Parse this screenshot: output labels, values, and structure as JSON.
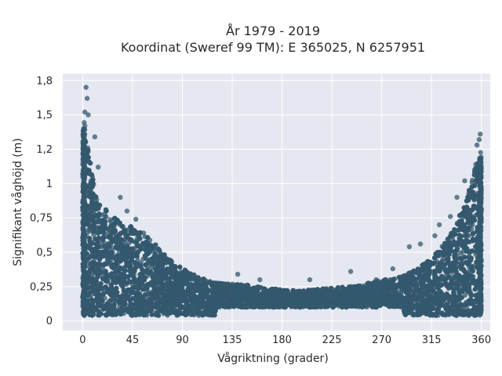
{
  "chart_data": {
    "type": "scatter",
    "title_lines": [
      "År 1979 - 2019",
      "Koordinat (Sweref 99 TM): E 365025, N 6257951"
    ],
    "xlabel": "Vågriktning (grader)",
    "ylabel": "Signifikant våghöjd (m)",
    "xlim": [
      -18,
      368
    ],
    "ylim": [
      -0.07,
      1.8
    ],
    "x_ticks": [
      0,
      45,
      90,
      135,
      180,
      225,
      270,
      315,
      360
    ],
    "x_tick_labels": [
      "0",
      "45",
      "90",
      "135",
      "180",
      "225",
      "270",
      "315",
      "360"
    ],
    "y_ticks": [
      0,
      0.25,
      0.5,
      0.75,
      1,
      1.25,
      1.5,
      1.75
    ],
    "y_tick_labels": [
      "0",
      "0,25",
      "0,5",
      "0,75",
      "1",
      "1,2",
      "1,5",
      "1,8"
    ],
    "grid": true,
    "colors": {
      "marker": "#34586e",
      "plot_bg": "#e5e8f0",
      "grid": "#ffffff"
    },
    "series": [
      {
        "envelope": [
          {
            "x": 0,
            "y": 1.55
          },
          {
            "x": 5,
            "y": 1.25
          },
          {
            "x": 10,
            "y": 1.0
          },
          {
            "x": 15,
            "y": 0.85
          },
          {
            "x": 30,
            "y": 0.75
          },
          {
            "x": 45,
            "y": 0.68
          },
          {
            "x": 60,
            "y": 0.6
          },
          {
            "x": 75,
            "y": 0.48
          },
          {
            "x": 90,
            "y": 0.38
          },
          {
            "x": 105,
            "y": 0.32
          },
          {
            "x": 120,
            "y": 0.28
          },
          {
            "x": 135,
            "y": 0.27
          },
          {
            "x": 150,
            "y": 0.26
          },
          {
            "x": 165,
            "y": 0.24
          },
          {
            "x": 180,
            "y": 0.23
          },
          {
            "x": 195,
            "y": 0.22
          },
          {
            "x": 210,
            "y": 0.23
          },
          {
            "x": 225,
            "y": 0.24
          },
          {
            "x": 240,
            "y": 0.25
          },
          {
            "x": 255,
            "y": 0.27
          },
          {
            "x": 270,
            "y": 0.3
          },
          {
            "x": 285,
            "y": 0.32
          },
          {
            "x": 300,
            "y": 0.38
          },
          {
            "x": 315,
            "y": 0.45
          },
          {
            "x": 330,
            "y": 0.6
          },
          {
            "x": 345,
            "y": 0.85
          },
          {
            "x": 352,
            "y": 1.05
          },
          {
            "x": 358,
            "y": 1.2
          },
          {
            "x": 360,
            "y": 1.25
          }
        ],
        "notable_points": [
          {
            "x": 3,
            "y": 1.7
          },
          {
            "x": 4,
            "y": 1.62
          },
          {
            "x": 2,
            "y": 1.52
          },
          {
            "x": 5,
            "y": 1.5
          },
          {
            "x": 2,
            "y": 1.42
          },
          {
            "x": 11,
            "y": 1.34
          },
          {
            "x": 14,
            "y": 1.12
          },
          {
            "x": 34,
            "y": 0.9
          },
          {
            "x": 40,
            "y": 0.8
          },
          {
            "x": 48,
            "y": 0.74
          },
          {
            "x": 55,
            "y": 0.64
          },
          {
            "x": 140,
            "y": 0.34
          },
          {
            "x": 160,
            "y": 0.3
          },
          {
            "x": 205,
            "y": 0.3
          },
          {
            "x": 242,
            "y": 0.36
          },
          {
            "x": 265,
            "y": 0.3
          },
          {
            "x": 280,
            "y": 0.38
          },
          {
            "x": 295,
            "y": 0.54
          },
          {
            "x": 305,
            "y": 0.56
          },
          {
            "x": 318,
            "y": 0.62
          },
          {
            "x": 322,
            "y": 0.7
          },
          {
            "x": 332,
            "y": 0.76
          },
          {
            "x": 338,
            "y": 0.9
          },
          {
            "x": 345,
            "y": 1.02
          },
          {
            "x": 354,
            "y": 1.1
          },
          {
            "x": 355,
            "y": 1.14
          },
          {
            "x": 356,
            "y": 1.28
          },
          {
            "x": 358,
            "y": 1.32
          },
          {
            "x": 359,
            "y": 1.36
          }
        ]
      }
    ]
  }
}
